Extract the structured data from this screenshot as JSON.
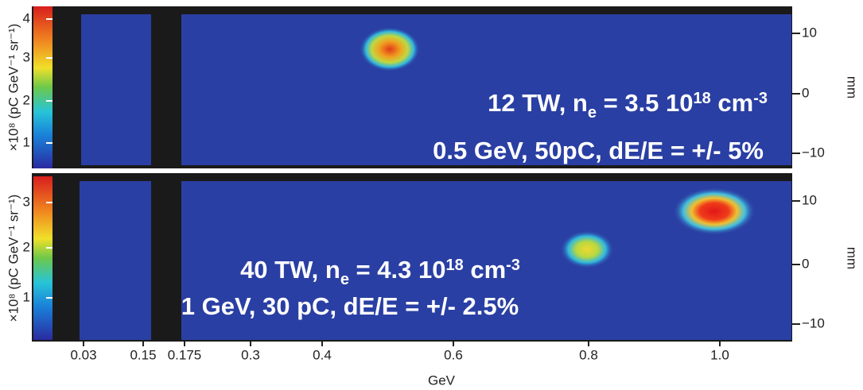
{
  "panels": [
    {
      "colorbar": {
        "label": "×10⁸ (pC GeV⁻¹ sr⁻¹)",
        "ticks": [
          "1",
          "2",
          "3",
          "4"
        ]
      },
      "right_axis": {
        "label": "mm",
        "ticks": [
          "10",
          "0",
          "−10"
        ]
      },
      "annotation": {
        "line1": [
          "12 TW, n",
          "e",
          " = 3.5 10",
          "18",
          " cm",
          "-3"
        ],
        "line2": "0.5 GeV, 50pC, dE/E = +/- 5%"
      }
    },
    {
      "colorbar": {
        "label": "×10⁸ (pC GeV⁻¹ sr⁻¹)",
        "ticks": [
          "1",
          "2",
          "3"
        ]
      },
      "right_axis": {
        "label": "mm",
        "ticks": [
          "10",
          "0",
          "−10"
        ]
      },
      "annotation": {
        "line1": [
          "40 TW, n",
          "e",
          " = 4.3 10",
          "18",
          " cm",
          "-3"
        ],
        "line2": "1 GeV, 30 pC, dE/E = +/- 2.5%"
      }
    }
  ],
  "x_axis": {
    "label": "GeV",
    "ticks": [
      "0.03",
      "0.15",
      "0.175",
      "0.3",
      "0.4",
      "0.6",
      "0.8",
      "1.0"
    ]
  }
}
